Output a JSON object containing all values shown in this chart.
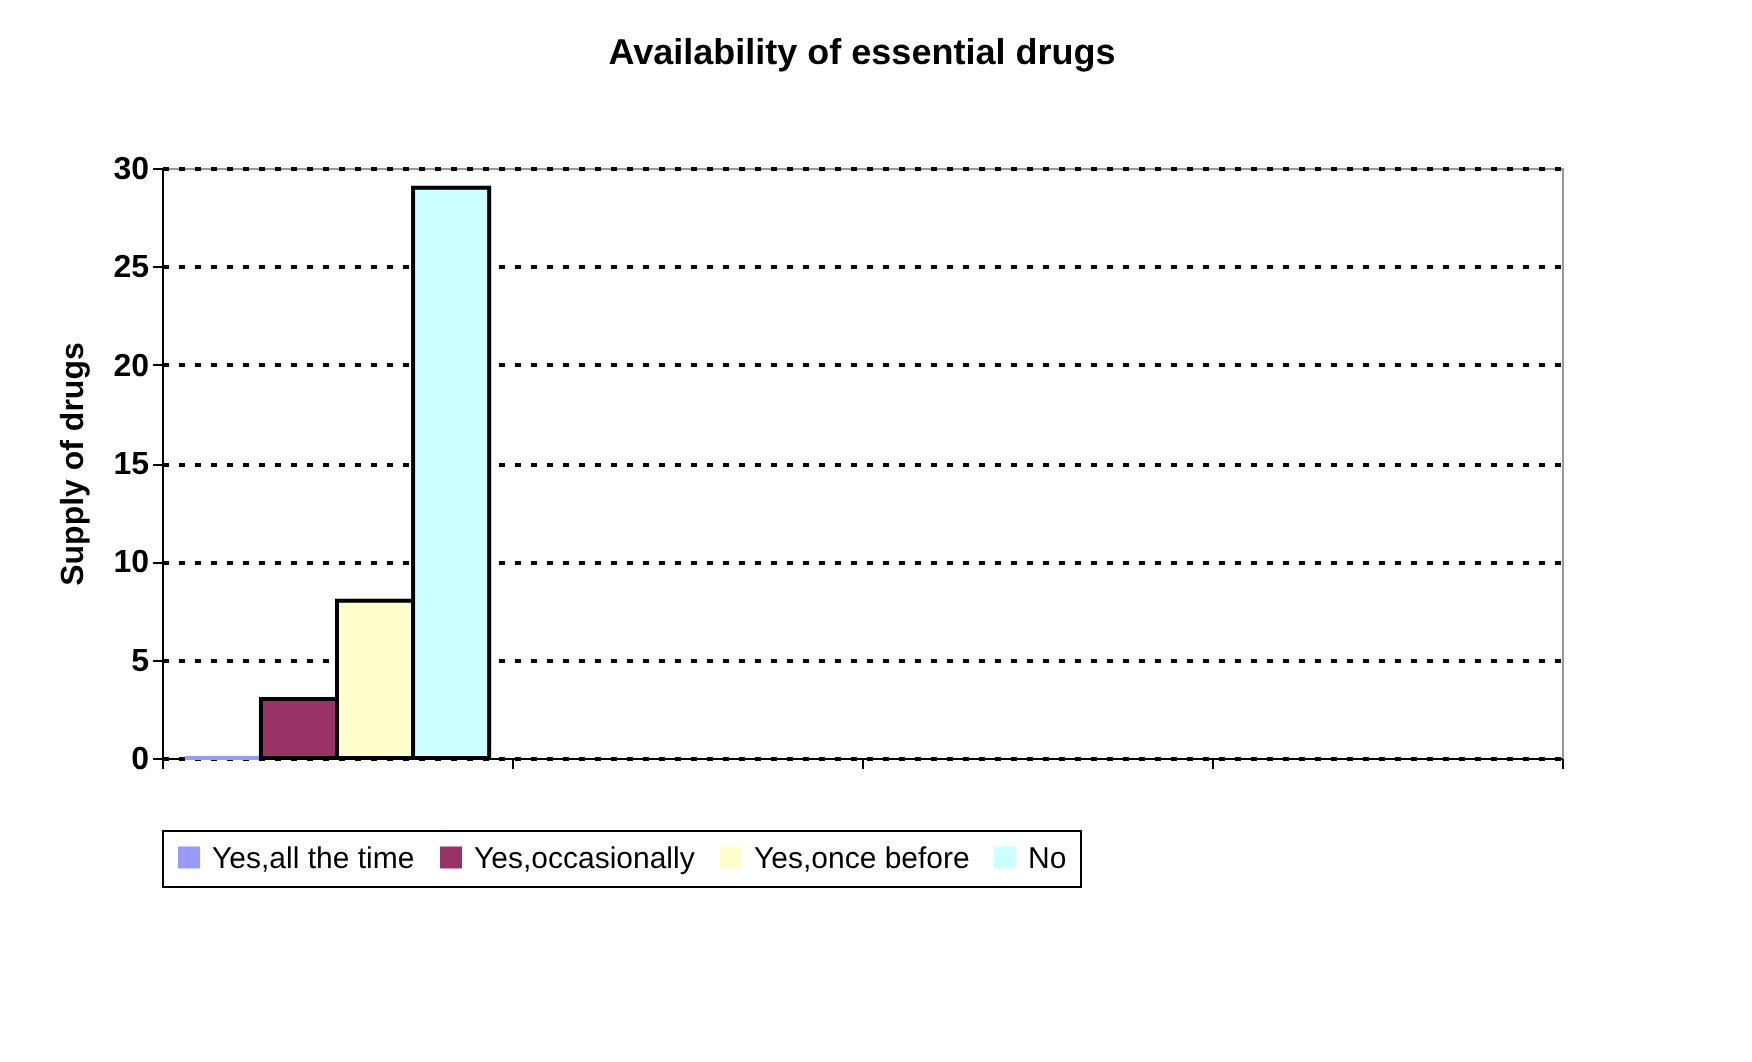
{
  "chart_data": {
    "type": "bar",
    "title": "Availability of essential drugs",
    "ylabel": "Supply of drugs",
    "categories": [
      null,
      null,
      null,
      null
    ],
    "series": [
      {
        "name": "Yes,all the time",
        "color": "#9999ff",
        "values": [
          0,
          null,
          null,
          null
        ]
      },
      {
        "name": "Yes,occasionally",
        "color": "#993366",
        "values": [
          3,
          null,
          null,
          null
        ]
      },
      {
        "name": "Yes,once before",
        "color": "#ffffcc",
        "values": [
          8,
          null,
          null,
          null
        ]
      },
      {
        "name": "No",
        "color": "#ccffff",
        "values": [
          29,
          null,
          null,
          null
        ]
      }
    ],
    "ylim": [
      0,
      30
    ],
    "yticks": [
      0,
      5,
      10,
      15,
      20,
      25,
      30
    ],
    "grid": "y",
    "legend": "bottom",
    "tick_labels": "y"
  }
}
